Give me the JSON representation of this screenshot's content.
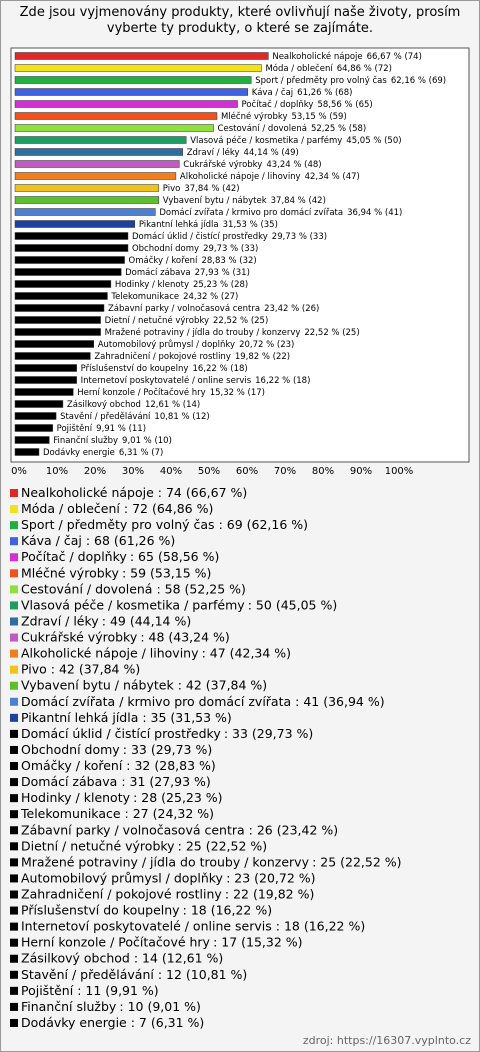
{
  "chart_data": {
    "type": "bar",
    "orientation": "horizontal",
    "title": "Zde jsou vyjmenovány produkty, které ovlivňují naše životy, prosím vyberte ty produkty, o které se zajímáte.",
    "categories": [
      "Nealkoholické nápoje",
      "Móda / oblečení",
      "Sport / předměty pro volný čas",
      "Káva / čaj",
      "Počítač / doplňky",
      "Mléčné výrobky",
      "Cestování / dovolená",
      "Vlasová péče / kosmetika / parfémy",
      "Zdraví / léky",
      "Cukrářské výrobky",
      "Alkoholické nápoje / lihoviny",
      "Pivo",
      "Vybavení bytu / nábytek",
      "Domácí zvířata / krmivo pro domácí zvířata",
      "Pikantní lehká jídla",
      "Domácí úklid / čistící prostředky",
      "Obchodní domy",
      "Omáčky / koření",
      "Domácí zábava",
      "Hodinky / klenoty",
      "Telekomunikace",
      "Zábavní parky / volnočasová centra",
      "Dietní / netučné výrobky",
      "Mražené potraviny / jídla do trouby / konzervy",
      "Automobilový průmysl / doplňky",
      "Zahradničení / pokojové rostliny",
      "Příslušenství do koupelny",
      "Internetoví poskytovatelé / online servis",
      "Herní konzole / Počítačové hry",
      "Zásilkový obchod",
      "Stavění / předělávání",
      "Pojištění",
      "Finanční služby",
      "Dodávky energie"
    ],
    "values": [
      66.67,
      64.86,
      62.16,
      61.26,
      58.56,
      53.15,
      52.25,
      45.05,
      44.14,
      43.24,
      42.34,
      37.84,
      37.84,
      36.94,
      31.53,
      29.73,
      29.73,
      28.83,
      27.93,
      25.23,
      24.32,
      23.42,
      22.52,
      22.52,
      20.72,
      19.82,
      16.22,
      16.22,
      15.32,
      12.61,
      10.81,
      9.91,
      9.01,
      6.31
    ],
    "counts": [
      74,
      72,
      69,
      68,
      65,
      59,
      58,
      50,
      49,
      48,
      47,
      42,
      42,
      41,
      35,
      33,
      33,
      32,
      31,
      28,
      27,
      26,
      25,
      25,
      23,
      22,
      18,
      18,
      17,
      14,
      12,
      11,
      10,
      7
    ],
    "value_labels": [
      "66,67 % (74)",
      "64,86 % (72)",
      "62,16 % (69)",
      "61,26 % (68)",
      "58,56 % (65)",
      "53,15 % (59)",
      "52,25 % (58)",
      "45,05 % (50)",
      "44,14 % (49)",
      "43,24 % (48)",
      "42,34 % (47)",
      "37,84 % (42)",
      "37,84 % (42)",
      "36,94 % (41)",
      "31,53 % (35)",
      "29,73 % (33)",
      "29,73 % (33)",
      "28,83 % (32)",
      "27,93 % (31)",
      "25,23 % (28)",
      "24,32 % (27)",
      "23,42 % (26)",
      "22,52 % (25)",
      "22,52 % (25)",
      "20,72 % (23)",
      "19,82 % (22)",
      "16,22 % (18)",
      "16,22 % (18)",
      "15,32 % (17)",
      "12,61 % (14)",
      "10,81 % (12)",
      "9,91 % (11)",
      "9,01 % (10)",
      "6,31 % (7)"
    ],
    "legend_labels": [
      ": 74 (66,67 %)",
      ": 72 (64,86 %)",
      ": 69 (62,16 %)",
      ": 68 (61,26 %)",
      ": 65 (58,56 %)",
      ": 59 (53,15 %)",
      ": 58 (52,25 %)",
      ": 50 (45,05 %)",
      ": 49 (44,14 %)",
      ": 48 (43,24 %)",
      ": 47 (42,34 %)",
      ": 42 (37,84 %)",
      ": 42 (37,84 %)",
      ": 41 (36,94 %)",
      ": 35 (31,53 %)",
      ": 33 (29,73 %)",
      ": 33 (29,73 %)",
      ": 32 (28,83 %)",
      ": 31 (27,93 %)",
      ": 28 (25,23 %)",
      ": 27 (24,32 %)",
      ": 26 (23,42 %)",
      ": 25 (22,52 %)",
      ": 25 (22,52 %)",
      ": 23 (20,72 %)",
      ": 22 (19,82 %)",
      ": 18 (16,22 %)",
      ": 18 (16,22 %)",
      ": 17 (15,32 %)",
      ": 14 (12,61 %)",
      ": 12 (10,81 %)",
      ": 11 (9,91 %)",
      ": 10 (9,01 %)",
      ": 7 (6,31 %)"
    ],
    "colors": [
      "#e02828",
      "#f2e21c",
      "#1fb040",
      "#3f62e0",
      "#d42fd4",
      "#f0521e",
      "#8ee03c",
      "#1e9e62",
      "#2f6e9e",
      "#c05cc0",
      "#ef7e1e",
      "#f0c21e",
      "#5cc02e",
      "#4f80d0",
      "#20409e",
      "#000000",
      "#000000",
      "#000000",
      "#000000",
      "#000000",
      "#000000",
      "#000000",
      "#000000",
      "#000000",
      "#000000",
      "#000000",
      "#000000",
      "#000000",
      "#000000",
      "#000000",
      "#000000",
      "#000000",
      "#000000",
      "#000000"
    ],
    "xlim": [
      0,
      100
    ],
    "xticks": [
      {
        "value": 0,
        "label": "0%"
      },
      {
        "value": 10,
        "label": "10%"
      },
      {
        "value": 20,
        "label": "20%"
      },
      {
        "value": 30,
        "label": "30%"
      },
      {
        "value": 40,
        "label": "40%"
      },
      {
        "value": 50,
        "label": "50%"
      },
      {
        "value": 60,
        "label": "60%"
      },
      {
        "value": 70,
        "label": "70%"
      },
      {
        "value": 80,
        "label": "80%"
      },
      {
        "value": 90,
        "label": "90%"
      },
      {
        "value": 100,
        "label": "100%"
      }
    ],
    "grid": false,
    "source": "zdroj: https://16307.vyplnto.cz"
  }
}
